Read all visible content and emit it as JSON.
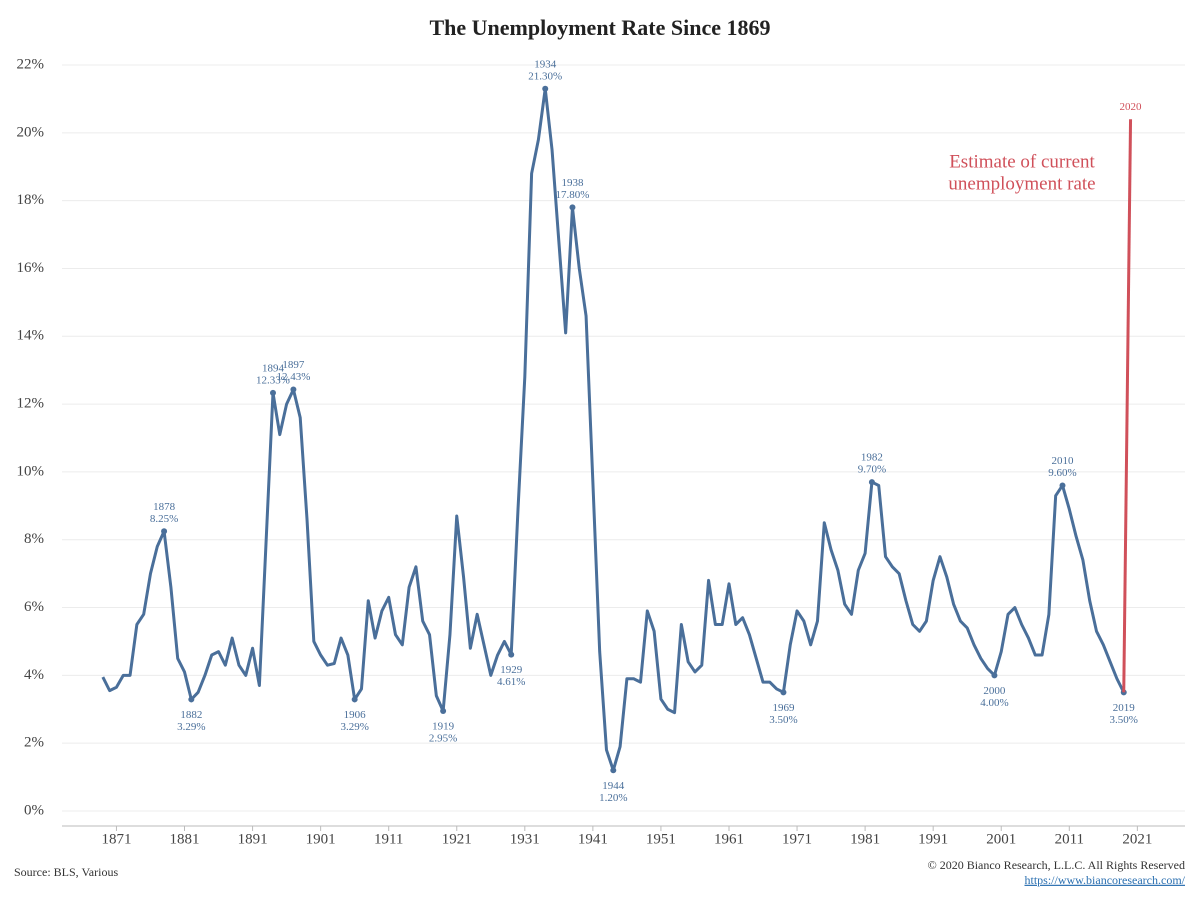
{
  "chart_data": {
    "type": "line",
    "title": "The Unemployment Rate Since 1869",
    "annotation": [
      "Estimate of current",
      "unemployment rate"
    ],
    "annotation_color": "#d0505a",
    "source": "Source: BLS, Various",
    "copyright": "© 2020 Bianco Research, L.L.C. All Rights Reserved",
    "link": "https://www.biancoresearch.com/",
    "xlim": [
      1863,
      2028
    ],
    "xticks": [
      1871,
      1881,
      1891,
      1901,
      1911,
      1921,
      1931,
      1941,
      1951,
      1961,
      1971,
      1981,
      1991,
      2001,
      2011,
      2021
    ],
    "ylim": [
      0,
      22
    ],
    "yticks": [
      {
        "value": 0,
        "label": "0%"
      },
      {
        "value": 2,
        "label": "2%"
      },
      {
        "value": 4,
        "label": "4%"
      },
      {
        "value": 6,
        "label": "6%"
      },
      {
        "value": 8,
        "label": "8%"
      },
      {
        "value": 10,
        "label": "10%"
      },
      {
        "value": 12,
        "label": "12%"
      },
      {
        "value": 14,
        "label": "14%"
      },
      {
        "value": 16,
        "label": "16%"
      },
      {
        "value": 18,
        "label": "18%"
      },
      {
        "value": 20,
        "label": "20%"
      },
      {
        "value": 22,
        "label": "22%"
      }
    ],
    "grid": true,
    "series": [
      {
        "color": "#4a6f9a",
        "x": [
          1869,
          1870,
          1871,
          1872,
          1873,
          1874,
          1875,
          1876,
          1877,
          1878,
          1879,
          1880,
          1881,
          1882,
          1883,
          1884,
          1885,
          1886,
          1887,
          1888,
          1889,
          1890,
          1891,
          1892,
          1893,
          1894,
          1895,
          1896,
          1897,
          1898,
          1899,
          1900,
          1901,
          1902,
          1903,
          1904,
          1905,
          1906,
          1907,
          1908,
          1909,
          1910,
          1911,
          1912,
          1913,
          1914,
          1915,
          1916,
          1917,
          1918,
          1919,
          1920,
          1921,
          1922,
          1923,
          1924,
          1925,
          1926,
          1927,
          1928,
          1929,
          1930,
          1931,
          1932,
          1933,
          1934,
          1935,
          1936,
          1937,
          1938,
          1939,
          1940,
          1941,
          1942,
          1943,
          1944,
          1945,
          1946,
          1947,
          1948,
          1949,
          1950,
          1951,
          1952,
          1953,
          1954,
          1955,
          1956,
          1957,
          1958,
          1959,
          1960,
          1961,
          1962,
          1963,
          1964,
          1965,
          1966,
          1967,
          1968,
          1969,
          1970,
          1971,
          1972,
          1973,
          1974,
          1975,
          1976,
          1977,
          1978,
          1979,
          1980,
          1981,
          1982,
          1983,
          1984,
          1985,
          1986,
          1987,
          1988,
          1989,
          1990,
          1991,
          1992,
          1993,
          1994,
          1995,
          1996,
          1997,
          1998,
          1999,
          2000,
          2001,
          2002,
          2003,
          2004,
          2005,
          2006,
          2007,
          2008,
          2009,
          2010,
          2011,
          2012,
          2013,
          2014,
          2015,
          2016,
          2017,
          2018,
          2019
        ],
        "values": [
          3.95,
          3.55,
          3.65,
          4.0,
          4.0,
          5.5,
          5.8,
          7.0,
          7.8,
          8.25,
          6.6,
          4.5,
          4.1,
          3.29,
          3.5,
          4.0,
          4.6,
          4.7,
          4.3,
          5.1,
          4.3,
          4.0,
          4.8,
          3.7,
          8.0,
          12.33,
          11.1,
          12.0,
          12.43,
          11.6,
          8.6,
          5.0,
          4.6,
          4.3,
          4.35,
          5.1,
          4.6,
          3.29,
          3.6,
          6.2,
          5.1,
          5.9,
          6.3,
          5.2,
          4.9,
          6.6,
          7.2,
          5.6,
          5.2,
          3.4,
          2.95,
          5.2,
          8.7,
          6.9,
          4.8,
          5.8,
          4.9,
          4.0,
          4.6,
          5.0,
          4.61,
          8.9,
          12.8,
          18.8,
          19.8,
          21.3,
          19.5,
          16.8,
          14.1,
          17.8,
          16.0,
          14.6,
          9.7,
          4.7,
          1.8,
          1.2,
          1.9,
          3.9,
          3.9,
          3.8,
          5.9,
          5.3,
          3.3,
          3.0,
          2.9,
          5.5,
          4.4,
          4.1,
          4.3,
          6.8,
          5.5,
          5.5,
          6.7,
          5.5,
          5.7,
          5.2,
          4.5,
          3.8,
          3.8,
          3.6,
          3.5,
          4.9,
          5.9,
          5.6,
          4.9,
          5.6,
          8.5,
          7.7,
          7.1,
          6.1,
          5.8,
          7.1,
          7.6,
          9.7,
          9.6,
          7.5,
          7.2,
          7.0,
          6.2,
          5.5,
          5.3,
          5.6,
          6.8,
          7.5,
          6.9,
          6.1,
          5.6,
          5.4,
          4.9,
          4.5,
          4.2,
          4.0,
          4.7,
          5.8,
          6.0,
          5.5,
          5.1,
          4.6,
          4.6,
          5.8,
          9.3,
          9.6,
          8.9,
          8.1,
          7.4,
          6.2,
          5.3,
          4.9,
          4.4,
          3.9,
          3.5
        ],
        "value_labels": [
          null,
          null,
          null,
          null,
          null,
          null,
          null,
          null,
          null,
          "8.25%",
          null,
          null,
          null,
          "3.29%",
          null,
          null,
          null,
          null,
          null,
          null,
          null,
          null,
          null,
          null,
          null,
          "12.33%",
          null,
          null,
          "12.43%",
          null,
          null,
          null,
          null,
          null,
          null,
          null,
          null,
          "3.29%",
          null,
          null,
          null,
          null,
          null,
          null,
          null,
          null,
          null,
          null,
          null,
          null,
          "2.95%",
          null,
          null,
          null,
          null,
          null,
          null,
          null,
          null,
          null,
          "4.61%",
          null,
          null,
          null,
          null,
          "21.30%",
          null,
          null,
          null,
          "17.80%",
          null,
          null,
          null,
          null,
          null,
          "1.20%",
          null,
          null,
          null,
          null,
          null,
          null,
          null,
          null,
          null,
          null,
          null,
          null,
          null,
          null,
          null,
          null,
          null,
          null,
          null,
          null,
          null,
          null,
          null,
          null,
          "3.50%",
          null,
          null,
          null,
          null,
          null,
          null,
          null,
          null,
          null,
          null,
          null,
          null,
          "9.70%",
          null,
          null,
          null,
          null,
          null,
          null,
          null,
          null,
          null,
          null,
          null,
          null,
          null,
          null,
          null,
          null,
          null,
          "4.00%",
          null,
          null,
          null,
          null,
          null,
          null,
          null,
          null,
          null,
          "9.60%",
          null,
          null,
          null,
          null,
          null,
          null,
          null,
          null,
          "3.50%"
        ]
      },
      {
        "color": "#d0505a",
        "x": [
          2019,
          2020
        ],
        "values": [
          3.5,
          20.4
        ]
      }
    ]
  }
}
